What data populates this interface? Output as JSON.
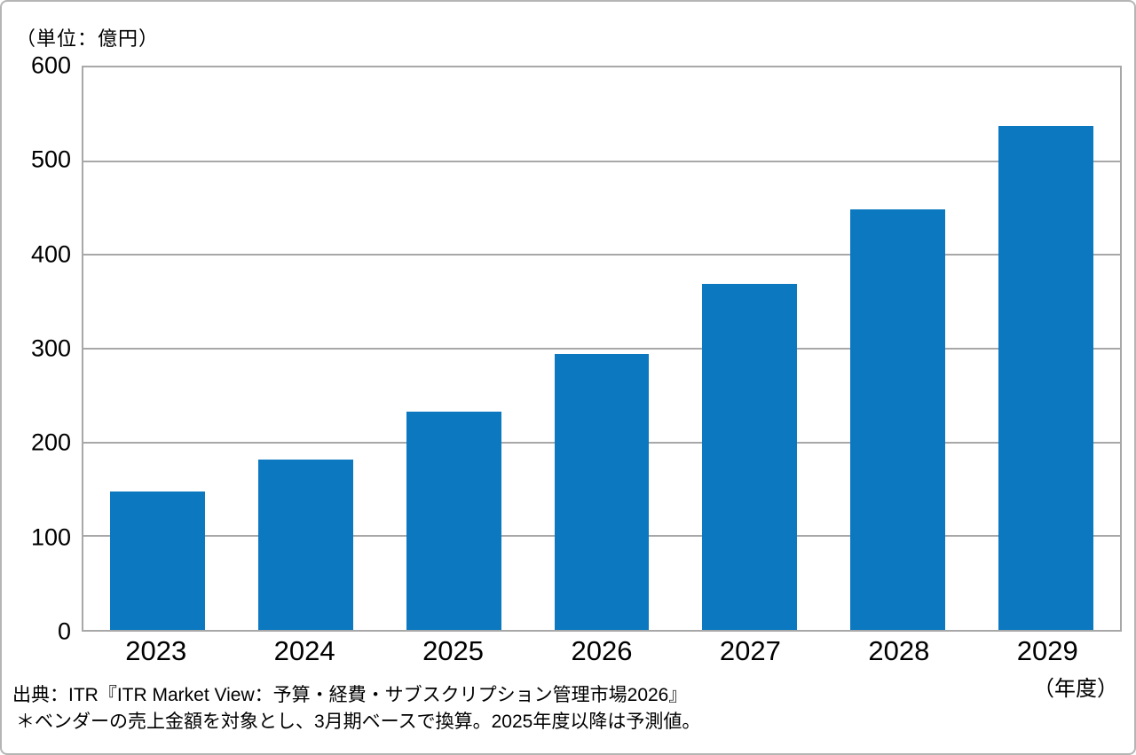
{
  "unit_label": "（単位：億円）",
  "fiscal_year_label": "（年度）",
  "source": {
    "line1": "出典：ITR『ITR Market View：予算・経費・サブスクリプション管理市場2026』",
    "line2": "＊ベンダーの売上金額を対象とし、3月期ベースで換算。2025年度以降は予測値。"
  },
  "colors": {
    "bar": "#0b78c0",
    "grid": "#a8a8a8",
    "frame_border": "#b5b5b5",
    "text": "#000000"
  },
  "chart_data": {
    "type": "bar",
    "categories": [
      "2023",
      "2024",
      "2025",
      "2026",
      "2027",
      "2028",
      "2029"
    ],
    "values": [
      148,
      182,
      233,
      294,
      369,
      449,
      538
    ],
    "title": "",
    "xlabel": "（年度）",
    "ylabel": "（単位：億円）",
    "ylim": [
      0,
      600
    ],
    "yticks": [
      0,
      100,
      200,
      300,
      400,
      500,
      600
    ],
    "grid": true,
    "legend": false,
    "bar_color": "#0b78c0"
  }
}
